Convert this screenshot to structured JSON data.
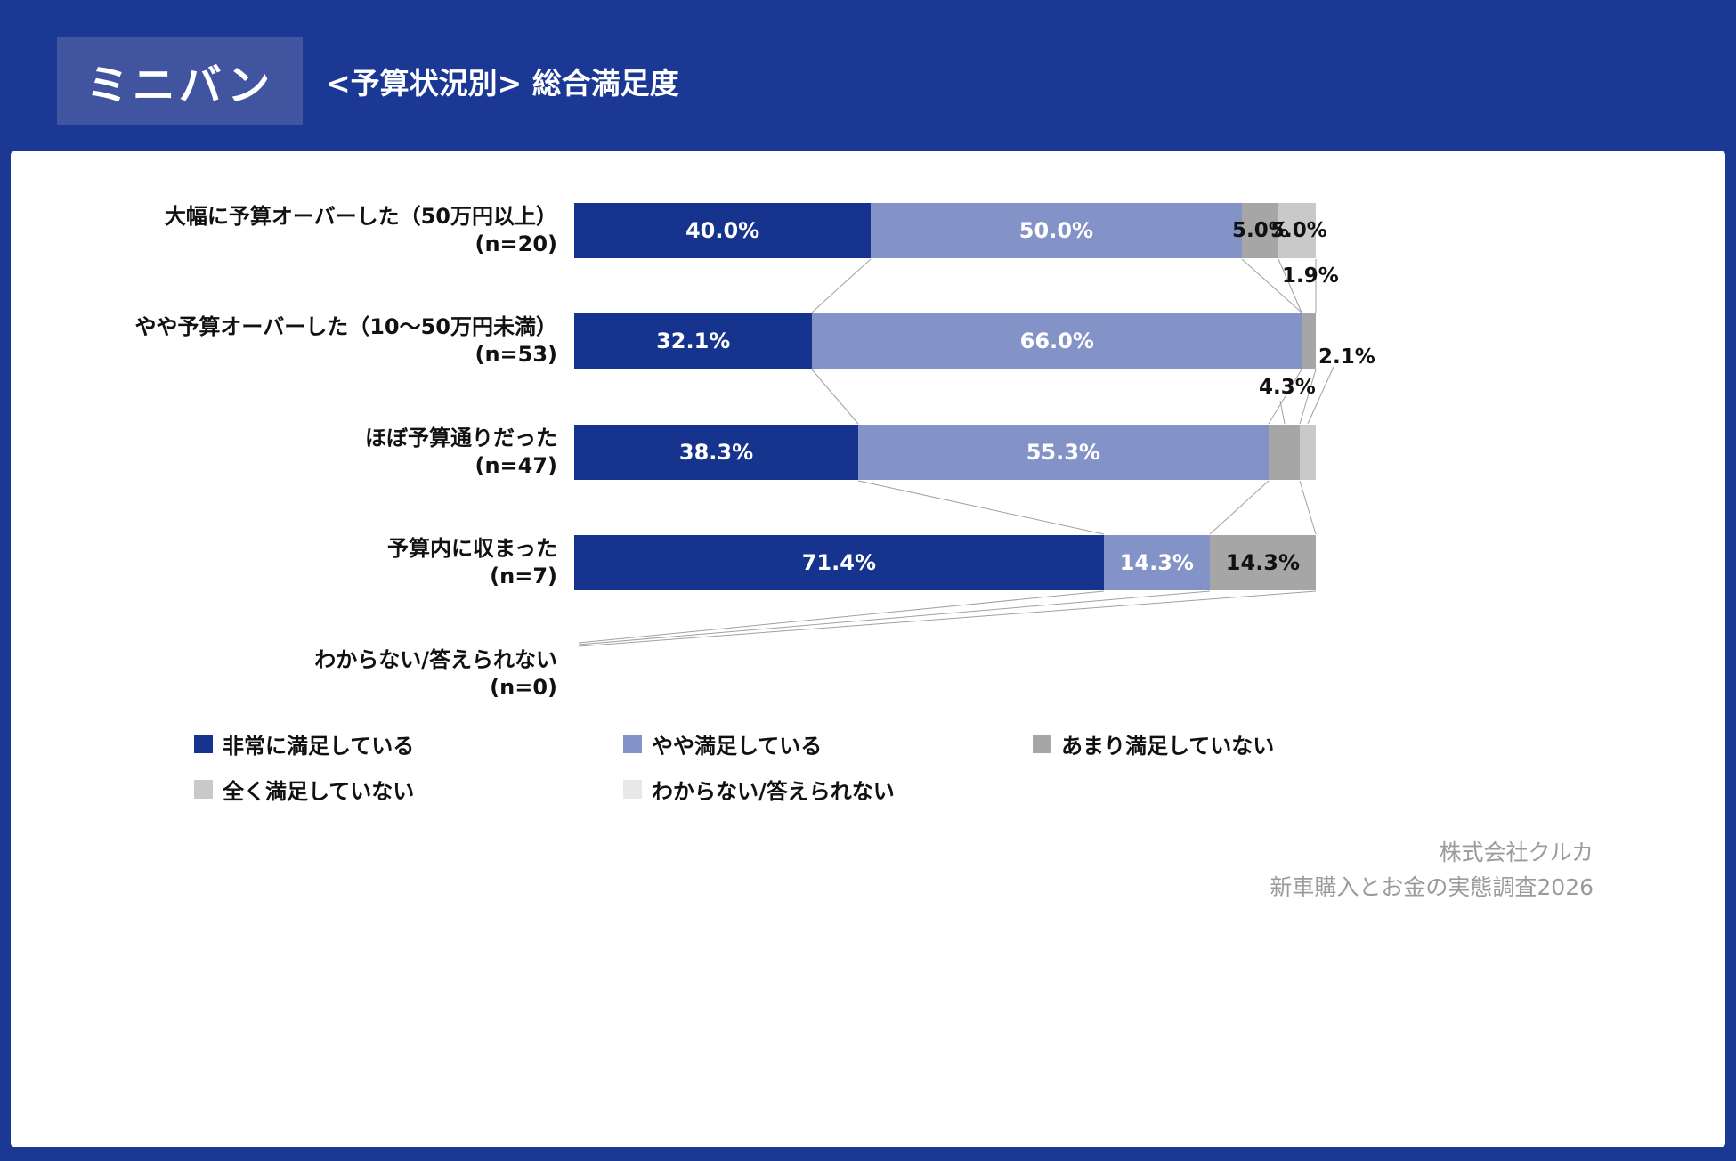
{
  "header": {
    "badge": "ミニバン",
    "title": "<予算状況別> 総合満足度"
  },
  "chart_data": {
    "type": "bar",
    "orientation": "horizontal",
    "stacked": true,
    "unit": "%",
    "xlim": [
      0,
      100
    ],
    "legend_position": "bottom",
    "value_label_format": "0.0%",
    "categories": [
      "大幅に予算オーバーした（50万円以上）",
      "やや予算オーバーした（10〜50万円未満）",
      "ほぼ予算通りだった",
      "予算内に収まった",
      "わからない/答えられない"
    ],
    "n_labels": [
      "(n=20)",
      "(n=53)",
      "(n=47)",
      "(n=7)",
      "(n=0)"
    ],
    "series": [
      {
        "name": "非常に満足している",
        "color": "#16338d",
        "values": [
          40.0,
          32.1,
          38.3,
          71.4,
          0
        ]
      },
      {
        "name": "やや満足している",
        "color": "#8392c7",
        "values": [
          50.0,
          66.0,
          55.3,
          14.3,
          0
        ]
      },
      {
        "name": "あまり満足していない",
        "color": "#a6a6a6",
        "values": [
          5.0,
          1.9,
          4.3,
          14.3,
          0
        ]
      },
      {
        "name": "全く満足していない",
        "color": "#c9c9c9",
        "values": [
          5.0,
          0,
          2.1,
          0,
          0
        ]
      },
      {
        "name": "わからない/答えられない",
        "color": "#e8e8e8",
        "values": [
          0,
          0,
          0,
          0,
          0
        ]
      }
    ]
  },
  "annotations": {
    "row1_amari": "5.0%",
    "row1_mattaku": "5.0%",
    "row2_amari": "1.9%",
    "row3_amari": "4.3%",
    "row3_mattaku": "2.1%"
  },
  "footer": {
    "company": "株式会社クルカ",
    "survey": "新車購入とお金の実態調査2026"
  },
  "colors": {
    "background": "#1b3894",
    "badge_background": "#41549f",
    "card_background": "#ffffff",
    "connector_line": "#a0a0a0",
    "footer_text": "#9b9b9b",
    "bar_label_light": "#ffffff",
    "bar_label_dark": "#111111"
  }
}
